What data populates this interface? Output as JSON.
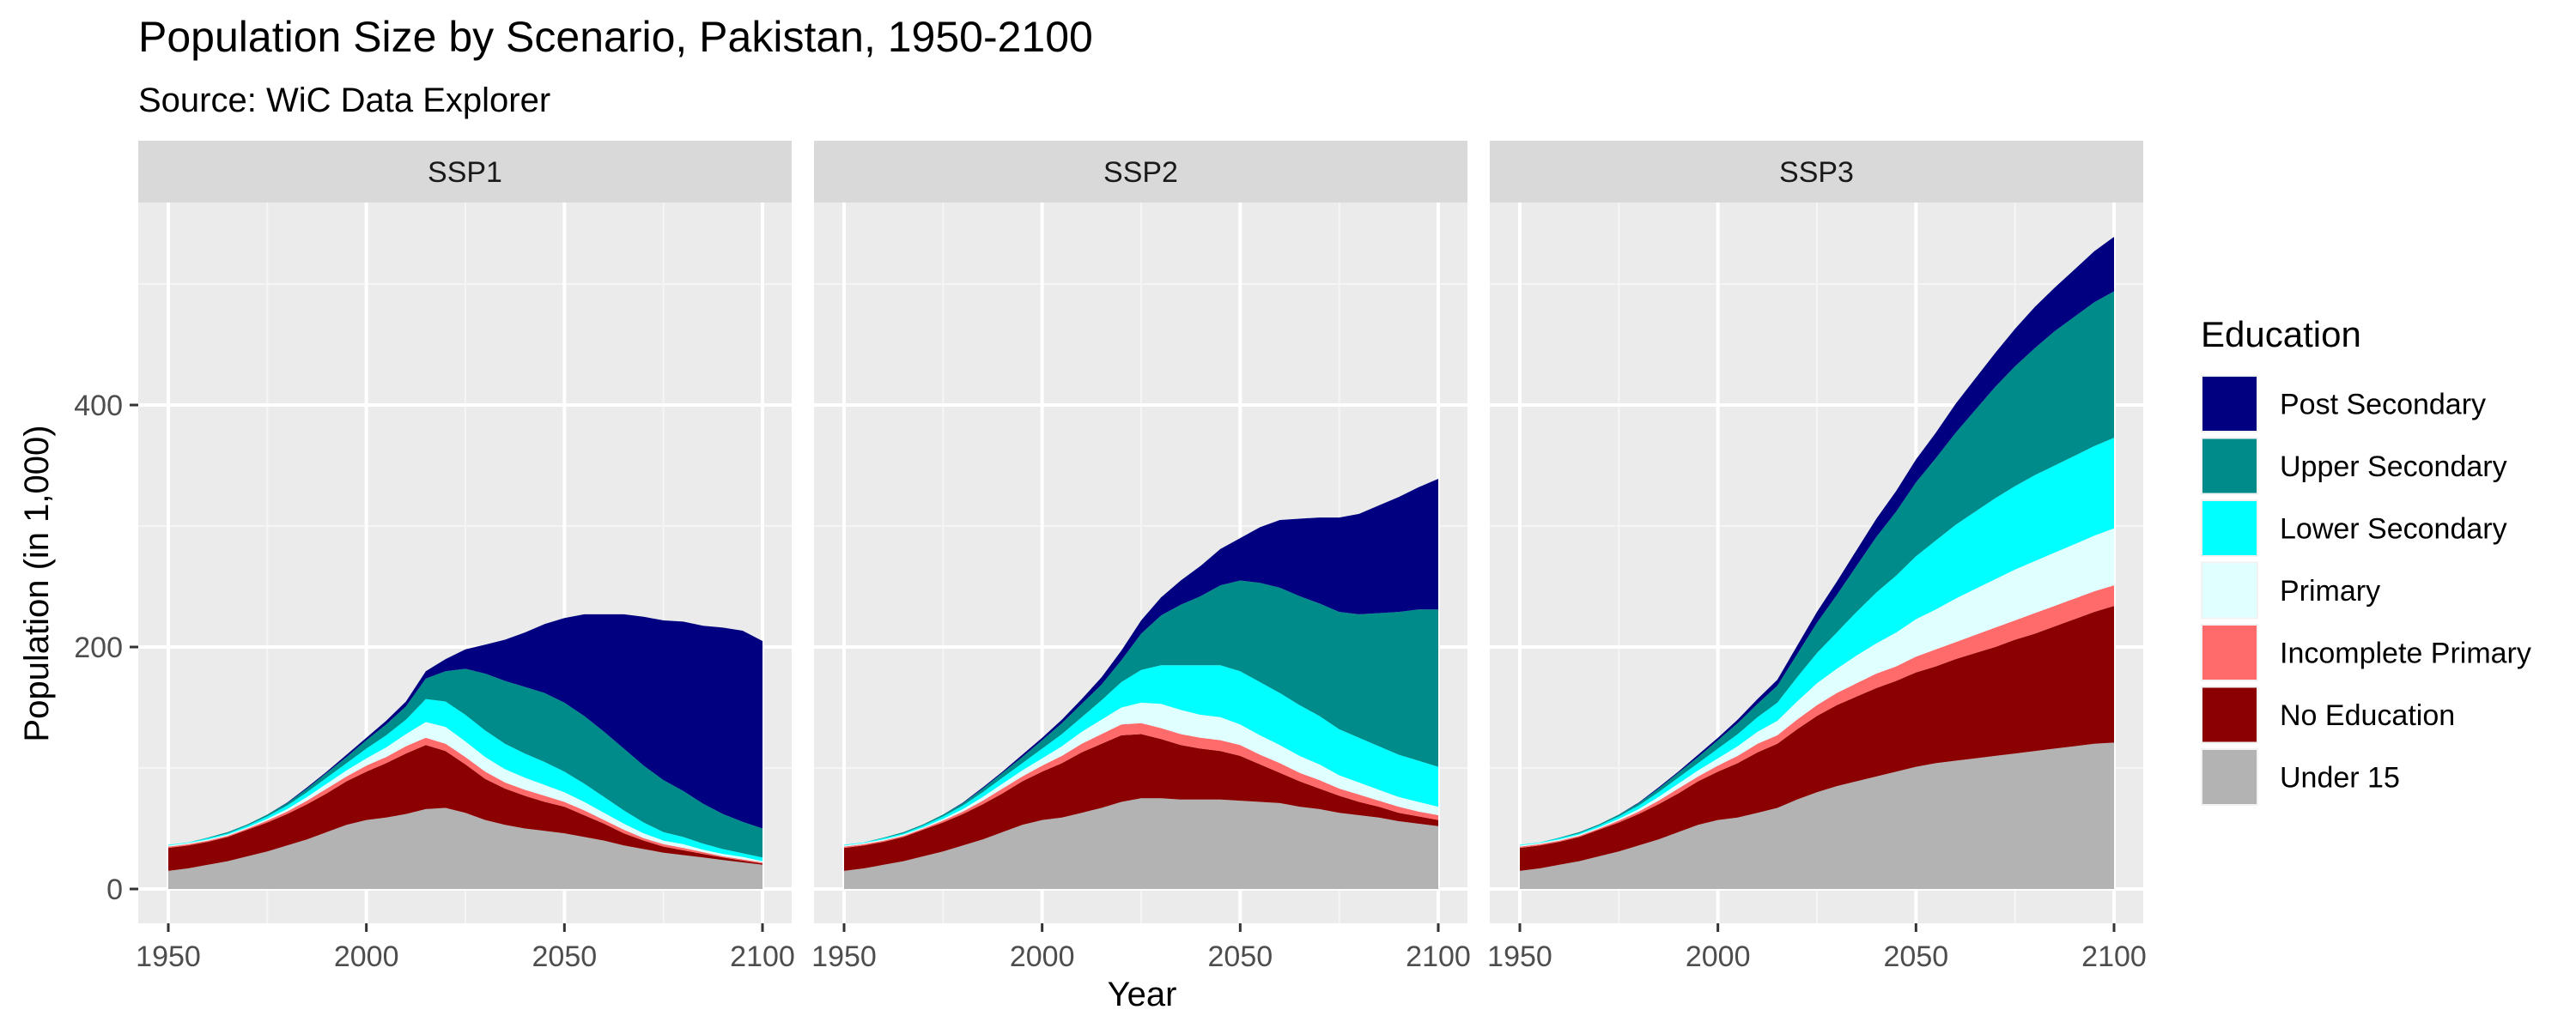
{
  "chart_data": {
    "type": "area",
    "stacked": true,
    "title": "Population Size by Scenario, Pakistan, 1950-2100",
    "subtitle": "Source: WiC Data Explorer",
    "xlabel": "Year",
    "ylabel": "Population (in 1,000)",
    "xlim": [
      1950,
      2100
    ],
    "ylim": [
      0,
      540
    ],
    "x_ticks": [
      "1950",
      "2000",
      "2050",
      "2100"
    ],
    "y_ticks": [
      "0",
      "200",
      "400"
    ],
    "grid": true,
    "legend_title": "Education",
    "legend_position": "right",
    "x": [
      1950,
      1955,
      1960,
      1965,
      1970,
      1975,
      1980,
      1985,
      1990,
      1995,
      2000,
      2005,
      2010,
      2015,
      2020,
      2025,
      2030,
      2035,
      2040,
      2045,
      2050,
      2055,
      2060,
      2065,
      2070,
      2075,
      2080,
      2085,
      2090,
      2095,
      2100
    ],
    "legend": [
      {
        "name": "Post Secondary",
        "color": "#000080"
      },
      {
        "name": "Upper Secondary",
        "color": "#008B8B"
      },
      {
        "name": "Lower Secondary",
        "color": "#00FFFF"
      },
      {
        "name": "Primary",
        "color": "#E0FFFF"
      },
      {
        "name": "Incomplete Primary",
        "color": "#FF6A6A"
      },
      {
        "name": "No Education",
        "color": "#8B0000"
      },
      {
        "name": "Under 15",
        "color": "#B3B3B3"
      }
    ],
    "panels": [
      {
        "label": "SSP1",
        "series": [
          {
            "name": "Under 15",
            "values": [
              15,
              17,
              20,
              23,
              27,
              31,
              36,
              41,
              47,
              53,
              57,
              59,
              62,
              66,
              67,
              63,
              57,
              53,
              50,
              48,
              46,
              43,
              40,
              36,
              33,
              30,
              28,
              26,
              24,
              22,
              20
            ]
          },
          {
            "name": "No Education",
            "values": [
              19,
              19,
              19,
              20,
              22,
              24,
              26,
              29,
              32,
              36,
              40,
              45,
              50,
              53,
              47,
              40,
              34,
              30,
              27,
              24,
              22,
              18,
              14,
              10,
              7,
              5,
              4,
              3,
              2,
              1.5,
              1
            ]
          },
          {
            "name": "Incomplete Primary",
            "values": [
              1,
              1,
              1,
              1,
              1,
              1.5,
              2,
              3,
              4,
              4,
              5,
              5,
              6,
              6,
              6,
              6,
              6,
              5,
              5,
              5,
              4,
              4,
              3,
              3,
              2,
              2,
              2,
              1.5,
              1,
              1,
              1
            ]
          },
          {
            "name": "Primary",
            "values": [
              1,
              1,
              1,
              1,
              1,
              1.5,
              2,
              3,
              4,
              5,
              6,
              8,
              10,
              13,
              14,
              13,
              12,
              11,
              10,
              9,
              8,
              7,
              6,
              5,
              4,
              3,
              3,
              2,
              2,
              2,
              1
            ]
          },
          {
            "name": "Lower Secondary",
            "values": [
              0.5,
              0.5,
              1,
              1,
              1.5,
              2,
              3,
              4,
              5,
              6,
              8,
              10,
              12,
              19,
              21,
              22,
              22,
              21,
              20,
              19,
              17,
              15,
              13,
              11,
              9,
              7,
              6,
              5,
              4,
              3,
              3
            ]
          },
          {
            "name": "Upper Secondary",
            "values": [
              0,
              0,
              0.5,
              1,
              1,
              1.5,
              2,
              3,
              4,
              5,
              7,
              9,
              11,
              17,
              25,
              38,
              47,
              52,
              55,
              57,
              57,
              56,
              54,
              51,
              47,
              43,
              38,
              33,
              29,
              26,
              24
            ]
          },
          {
            "name": "Post Secondary",
            "values": [
              0,
              0,
              0,
              0,
              0,
              0,
              0.5,
              1,
              1,
              2,
              2,
              3,
              4,
              6,
              10,
              16,
              24,
              34,
              45,
              57,
              70,
              84,
              97,
              111,
              123,
              132,
              140,
              147,
              154,
              158,
              155
            ]
          }
        ]
      },
      {
        "label": "SSP2",
        "series": [
          {
            "name": "Under 15",
            "values": [
              15,
              17,
              20,
              23,
              27,
              31,
              36,
              41,
              47,
              53,
              57,
              59,
              63,
              67,
              72,
              75,
              75,
              74,
              74,
              74,
              73,
              72,
              71,
              68,
              66,
              63,
              61,
              59,
              56,
              54,
              52
            ]
          },
          {
            "name": "No Education",
            "values": [
              19,
              19,
              19,
              20,
              22,
              24,
              26,
              29,
              32,
              36,
              40,
              45,
              50,
              53,
              55,
              53,
              49,
              45,
              42,
              40,
              37,
              31,
              25,
              21,
              17,
              14,
              11,
              9,
              7,
              6,
              5
            ]
          },
          {
            "name": "Incomplete Primary",
            "values": [
              1,
              1,
              1,
              1,
              1,
              1.5,
              2,
              3,
              4,
              4,
              5,
              6,
              7,
              8,
              9,
              9,
              9,
              9,
              9,
              9,
              9,
              8,
              8,
              7,
              7,
              6,
              6,
              5,
              5,
              4,
              4
            ]
          },
          {
            "name": "Primary",
            "values": [
              1,
              1,
              1,
              1,
              1,
              1.5,
              2,
              3,
              4,
              5,
              6,
              8,
              10,
              12,
              14,
              17,
              20,
              20,
              19,
              19,
              17,
              16,
              15,
              14,
              13,
              11,
              10,
              9,
              8,
              8,
              7
            ]
          },
          {
            "name": "Lower Secondary",
            "values": [
              0.5,
              0.5,
              1,
              1,
              1.5,
              2,
              3,
              4,
              5,
              6,
              8,
              10,
              12,
              16,
              21,
              27,
              32,
              37,
              41,
              43,
              44,
              44,
              43,
              42,
              40,
              38,
              37,
              36,
              35,
              34,
              33
            ]
          },
          {
            "name": "Upper Secondary",
            "values": [
              0,
              0,
              0.5,
              1,
              1,
              1.5,
              2,
              3,
              4,
              5,
              7,
              9,
              11,
              13,
              18,
              30,
              41,
              50,
              57,
              66,
              75,
              82,
              87,
              90,
              93,
              97,
              102,
              110,
              118,
              125,
              130
            ]
          },
          {
            "name": "Post Secondary",
            "values": [
              0,
              0,
              0,
              0,
              0,
              0,
              0.5,
              1,
              1,
              2,
              2,
              3,
              4,
              6,
              8,
              11,
              15,
              20,
              25,
              30,
              35,
              46,
              56,
              64,
              71,
              78,
              83,
              89,
              95,
              101,
              108
            ]
          }
        ]
      },
      {
        "label": "SSP3",
        "series": [
          {
            "name": "Under 15",
            "values": [
              15,
              17,
              20,
              23,
              27,
              31,
              36,
              41,
              47,
              53,
              57,
              59,
              63,
              67,
              74,
              80,
              85,
              89,
              93,
              97,
              101,
              104,
              106,
              108,
              110,
              112,
              114,
              116,
              118,
              120,
              121
            ]
          },
          {
            "name": "No Education",
            "values": [
              19,
              19,
              19,
              20,
              22,
              24,
              26,
              29,
              32,
              36,
              40,
              45,
              50,
              53,
              58,
              63,
              67,
              70,
              73,
              75,
              78,
              80,
              84,
              87,
              90,
              94,
              97,
              101,
              105,
              109,
              113
            ]
          },
          {
            "name": "Incomplete Primary",
            "values": [
              1,
              1,
              1,
              1,
              1,
              1.5,
              2,
              3,
              4,
              4,
              5,
              6,
              7,
              7,
              8,
              9,
              10,
              11,
              12,
              12,
              13,
              14,
              14,
              15,
              16,
              16,
              17,
              17,
              17,
              17,
              17
            ]
          },
          {
            "name": "Primary",
            "values": [
              1,
              1,
              1,
              1,
              1,
              1.5,
              2,
              3,
              4,
              5,
              6,
              8,
              10,
              12,
              15,
              18,
              20,
              23,
              25,
              28,
              31,
              33,
              36,
              38,
              40,
              42,
              43,
              44,
              45,
              46,
              47
            ]
          },
          {
            "name": "Lower Secondary",
            "values": [
              0.5,
              0.5,
              1,
              1,
              1.5,
              2,
              3,
              4,
              5,
              6,
              8,
              10,
              12,
              15,
              20,
              25,
              30,
              36,
              42,
              47,
              52,
              57,
              61,
              64,
              67,
              69,
              71,
              72,
              73,
              74,
              75
            ]
          },
          {
            "name": "Upper Secondary",
            "values": [
              0,
              0,
              0.5,
              1,
              1,
              1.5,
              2,
              3,
              4,
              5,
              7,
              9,
              11,
              14,
              19,
              25,
              31,
              38,
              46,
              53,
              61,
              68,
              76,
              84,
              92,
              99,
              105,
              111,
              115,
              119,
              121
            ]
          },
          {
            "name": "Post Secondary",
            "values": [
              0,
              0,
              0,
              0,
              0,
              0,
              0.5,
              1,
              1,
              2,
              2,
              3,
              4,
              5,
              7,
              9,
              11,
              13,
              15,
              17,
              19,
              21,
              24,
              26,
              28,
              31,
              34,
              36,
              39,
              42,
              45
            ]
          }
        ]
      }
    ]
  }
}
